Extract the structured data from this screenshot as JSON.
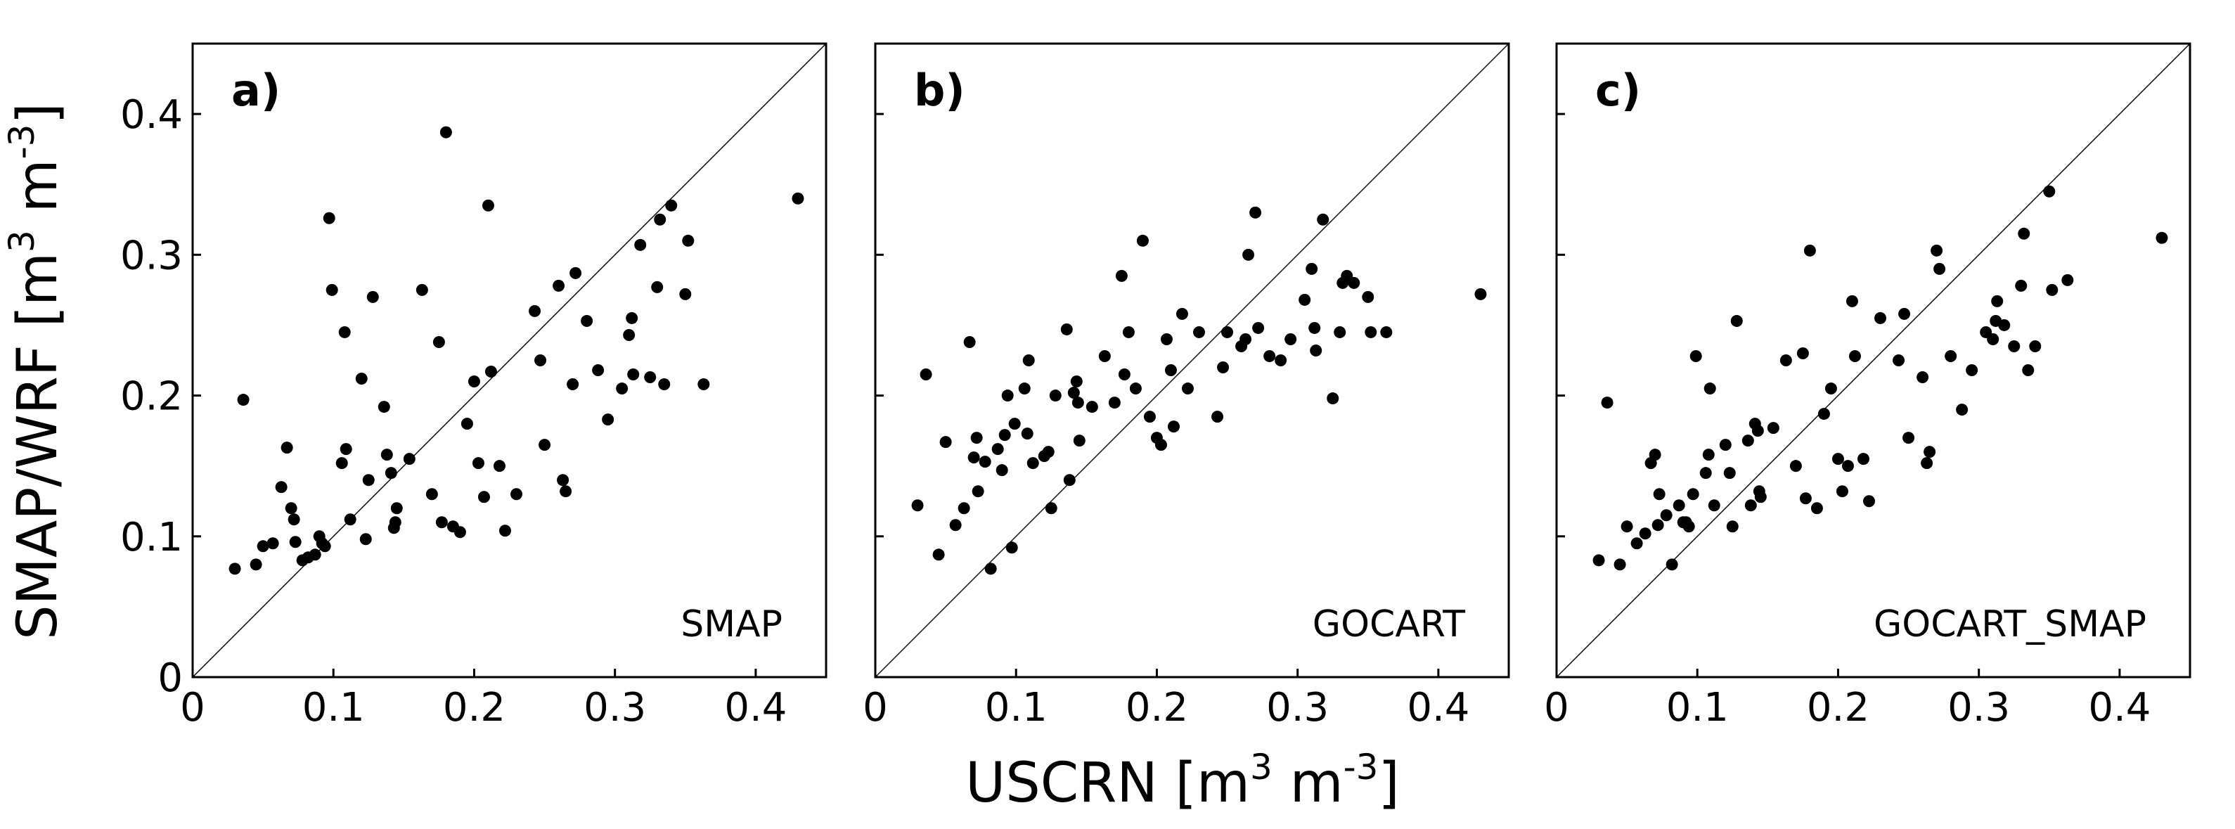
{
  "chart_data": {
    "type": "scatter",
    "xlabel": {
      "text": "USCRN [m",
      "unit_a": "3",
      "mid": " m",
      "unit_b": "-3",
      "end": "]"
    },
    "ylabel": {
      "text": "SMAP/WRF [m",
      "unit_a": "3",
      "mid": " m",
      "unit_b": "-3",
      "end": "]"
    },
    "xlim": [
      0,
      0.45
    ],
    "ylim": [
      0,
      0.45
    ],
    "xticks": [
      "0",
      "0.1",
      "0.2",
      "0.3",
      "0.4"
    ],
    "yticks": [
      "0",
      "0.1",
      "0.2",
      "0.3",
      "0.4"
    ],
    "x": [
      0.03,
      0.036,
      0.045,
      0.05,
      0.057,
      0.063,
      0.067,
      0.07,
      0.072,
      0.073,
      0.078,
      0.082,
      0.087,
      0.09,
      0.092,
      0.094,
      0.097,
      0.099,
      0.106,
      0.108,
      0.109,
      0.112,
      0.12,
      0.123,
      0.125,
      0.128,
      0.136,
      0.138,
      0.141,
      0.143,
      0.144,
      0.145,
      0.154,
      0.163,
      0.17,
      0.175,
      0.177,
      0.18,
      0.185,
      0.19,
      0.195,
      0.2,
      0.203,
      0.207,
      0.21,
      0.212,
      0.218,
      0.222,
      0.23,
      0.243,
      0.247,
      0.25,
      0.26,
      0.263,
      0.265,
      0.27,
      0.272,
      0.28,
      0.288,
      0.295,
      0.305,
      0.31,
      0.312,
      0.313,
      0.318,
      0.325,
      0.33,
      0.332,
      0.335,
      0.34,
      0.35,
      0.352,
      0.363,
      0.43
    ],
    "series": [
      {
        "name": "SMAP",
        "panel": "a)",
        "values": [
          0.077,
          0.197,
          0.08,
          0.093,
          0.095,
          0.135,
          0.163,
          0.12,
          0.112,
          0.096,
          0.083,
          0.085,
          0.087,
          0.1,
          0.095,
          0.093,
          0.326,
          0.275,
          0.152,
          0.245,
          0.162,
          0.112,
          0.212,
          0.098,
          0.14,
          0.27,
          0.192,
          0.158,
          0.145,
          0.106,
          0.11,
          0.12,
          0.155,
          0.275,
          0.13,
          0.238,
          0.11,
          0.387,
          0.107,
          0.103,
          0.18,
          0.21,
          0.152,
          0.128,
          0.335,
          0.217,
          0.15,
          0.104,
          0.13,
          0.26,
          0.225,
          0.165,
          0.278,
          0.14,
          0.132,
          0.208,
          0.287,
          0.253,
          0.218,
          0.183,
          0.205,
          0.243,
          0.255,
          0.215,
          0.307,
          0.213,
          0.277,
          0.325,
          0.208,
          0.335,
          0.272,
          0.31,
          0.208,
          0.34
        ]
      },
      {
        "name": "GOCART",
        "panel": "b)",
        "values": [
          0.122,
          0.215,
          0.087,
          0.167,
          0.108,
          0.12,
          0.238,
          0.156,
          0.17,
          0.132,
          0.153,
          0.077,
          0.162,
          0.147,
          0.172,
          0.2,
          0.092,
          0.18,
          0.205,
          0.173,
          0.225,
          0.152,
          0.157,
          0.16,
          0.12,
          0.2,
          0.247,
          0.14,
          0.202,
          0.21,
          0.195,
          0.168,
          0.192,
          0.228,
          0.195,
          0.285,
          0.215,
          0.245,
          0.205,
          0.31,
          0.185,
          0.17,
          0.165,
          0.24,
          0.218,
          0.178,
          0.258,
          0.205,
          0.245,
          0.185,
          0.22,
          0.245,
          0.235,
          0.24,
          0.3,
          0.33,
          0.248,
          0.228,
          0.225,
          0.24,
          0.268,
          0.29,
          0.248,
          0.232,
          0.325,
          0.198,
          0.245,
          0.28,
          0.285,
          0.28,
          0.27,
          0.245,
          0.245,
          0.272
        ]
      },
      {
        "name": "GOCART_SMAP",
        "panel": "c)",
        "values": [
          0.083,
          0.195,
          0.08,
          0.107,
          0.095,
          0.102,
          0.152,
          0.158,
          0.108,
          0.13,
          0.115,
          0.08,
          0.122,
          0.11,
          0.11,
          0.107,
          0.13,
          0.228,
          0.145,
          0.158,
          0.205,
          0.122,
          0.165,
          0.145,
          0.107,
          0.253,
          0.168,
          0.122,
          0.18,
          0.175,
          0.132,
          0.128,
          0.177,
          0.225,
          0.15,
          0.23,
          0.127,
          0.303,
          0.12,
          0.187,
          0.205,
          0.155,
          0.132,
          0.15,
          0.267,
          0.228,
          0.155,
          0.125,
          0.255,
          0.225,
          0.258,
          0.17,
          0.213,
          0.152,
          0.16,
          0.303,
          0.29,
          0.228,
          0.19,
          0.218,
          0.245,
          0.24,
          0.253,
          0.267,
          0.25,
          0.235,
          0.278,
          0.315,
          0.218,
          0.235,
          0.345,
          0.275,
          0.282,
          0.312
        ]
      }
    ],
    "panel_labels": [
      "a)",
      "b)",
      "c)"
    ],
    "series_names": [
      "SMAP",
      "GOCART",
      "GOCART_SMAP"
    ],
    "reference_line": "1:1",
    "grid": false,
    "legend": "none"
  }
}
